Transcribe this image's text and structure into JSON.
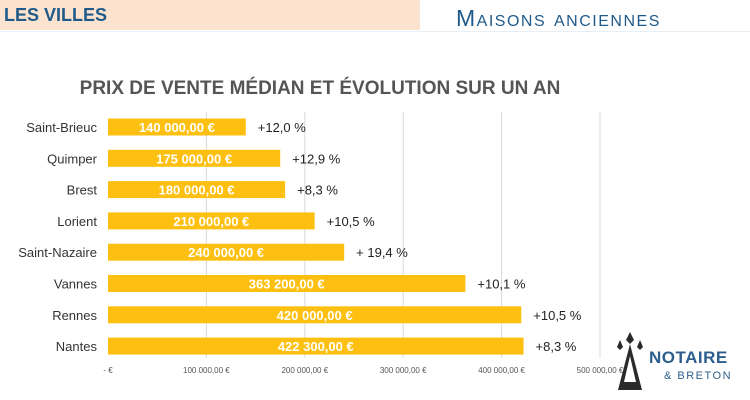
{
  "header": {
    "section_title": "LES VILLES",
    "subtitle": "Maisons anciennes"
  },
  "logo": {
    "main": "NOTAIRE",
    "sub": "& BRETON"
  },
  "colors": {
    "bar": "#fec010",
    "header_band": "#fbe3cf",
    "title_blue": "#1f5a8a"
  },
  "chart_data": {
    "type": "bar",
    "orientation": "horizontal",
    "title": "PRIX DE VENTE MÉDIAN ET ÉVOLUTION SUR UN AN",
    "categories": [
      "Saint-Brieuc",
      "Quimper",
      "Brest",
      "Lorient",
      "Saint-Nazaire",
      "Vannes",
      "Rennes",
      "Nantes"
    ],
    "values": [
      140000,
      175000,
      180000,
      210000,
      240000,
      363200,
      420000,
      422300
    ],
    "value_labels": [
      "140 000,00 €",
      "175 000,00 €",
      "180 000,00 €",
      "210 000,00 €",
      "240 000,00 €",
      "363 200,00 €",
      "420 000,00 €",
      "422 300,00 €"
    ],
    "evolution_labels": [
      "+12,0 %",
      "+12,9 %",
      "+8,3 %",
      "+10,5 %",
      "+ 19,4 %",
      "+10,1 %",
      "+10,5 %",
      "+8,3 %"
    ],
    "xlim": [
      0,
      500000
    ],
    "x_ticks": [
      0,
      100000,
      200000,
      300000,
      400000,
      500000
    ],
    "x_tick_labels": [
      "-   €",
      "100 000,00 €",
      "200 000,00 €",
      "300 000,00 €",
      "400 000,00 €",
      "500 000,00 €"
    ],
    "grid": true,
    "legend": "none"
  }
}
